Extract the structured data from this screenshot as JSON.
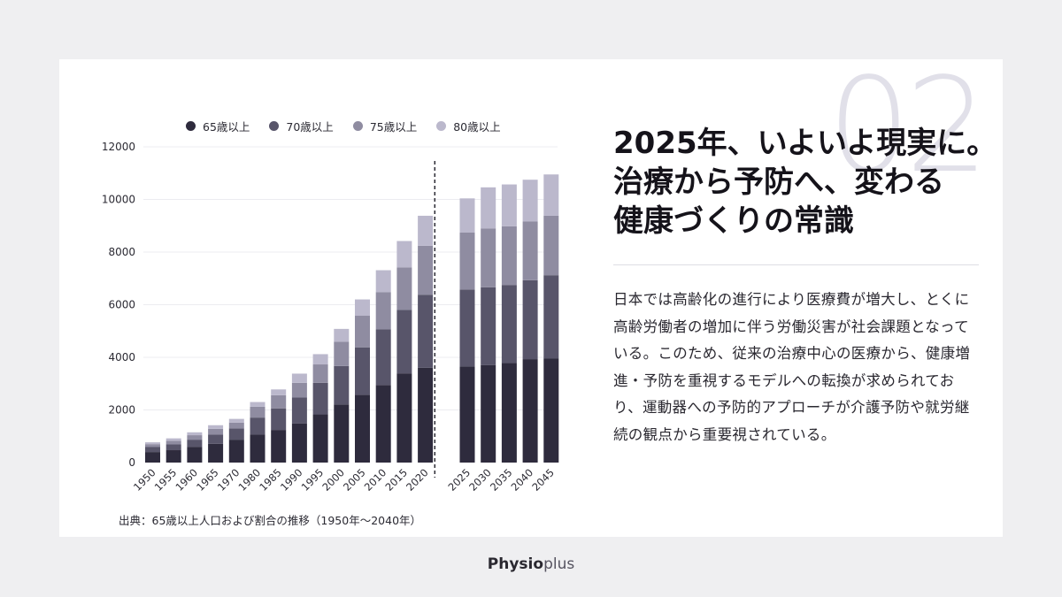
{
  "card": {
    "number": "02",
    "title_lines": [
      "2025年、いよいよ現実に。",
      "治療から予防へ、変わる",
      "健康づくりの常識"
    ],
    "body": "日本では高齢化の進行により医療費が増大し、とくに高齢労働者の増加に伴う労働災害が社会課題となっている。このため、従来の治療中心の医療から、健康増進・予防を重視するモデルへの転換が求められており、運動器への予防的アプローチが介護予防や就労継続の観点から重要視されている。",
    "source": "出典：65歳以上人口および割合の推移（1950年〜2040年）"
  },
  "brand": {
    "main": "Physio",
    "sub": "plus"
  },
  "chart_data": {
    "type": "bar",
    "stacked": true,
    "categories": [
      "1950",
      "1955",
      "1960",
      "1965",
      "1970",
      "1980",
      "1985",
      "1990",
      "1995",
      "2000",
      "2005",
      "2010",
      "2015",
      "2020",
      "2025",
      "2030",
      "2035",
      "2040",
      "2045"
    ],
    "series": [
      {
        "name": "65歳以上",
        "color": "#2e2b3d",
        "values": [
          400,
          470,
          600,
          710,
          870,
          1060,
          1240,
          1490,
          1830,
          2210,
          2580,
          2950,
          3390,
          3600,
          3650,
          3700,
          3780,
          3930,
          3950
        ]
      },
      {
        "name": "70歳以上",
        "color": "#58556a",
        "values": [
          200,
          220,
          270,
          350,
          430,
          650,
          820,
          980,
          1200,
          1460,
          1800,
          2110,
          2410,
          2780,
          2920,
          2960,
          2960,
          3000,
          3170
        ]
      },
      {
        "name": "75歳以上",
        "color": "#8f8ca1",
        "values": [
          100,
          140,
          170,
          220,
          220,
          410,
          500,
          560,
          700,
          920,
          1200,
          1420,
          1620,
          1860,
          2170,
          2240,
          2240,
          2230,
          2260
        ]
      },
      {
        "name": "80歳以上",
        "color": "#bbb8cc",
        "values": [
          70,
          90,
          110,
          140,
          140,
          180,
          220,
          350,
          390,
          490,
          620,
          830,
          1000,
          1140,
          1300,
          1560,
          1590,
          1590,
          1570
        ]
      }
    ],
    "ylim": [
      0,
      12000
    ],
    "yticks": [
      0,
      2000,
      4000,
      6000,
      8000,
      10000,
      12000
    ],
    "divider_between": [
      "2020",
      "2025"
    ],
    "legend_position": "top",
    "grid": true
  }
}
